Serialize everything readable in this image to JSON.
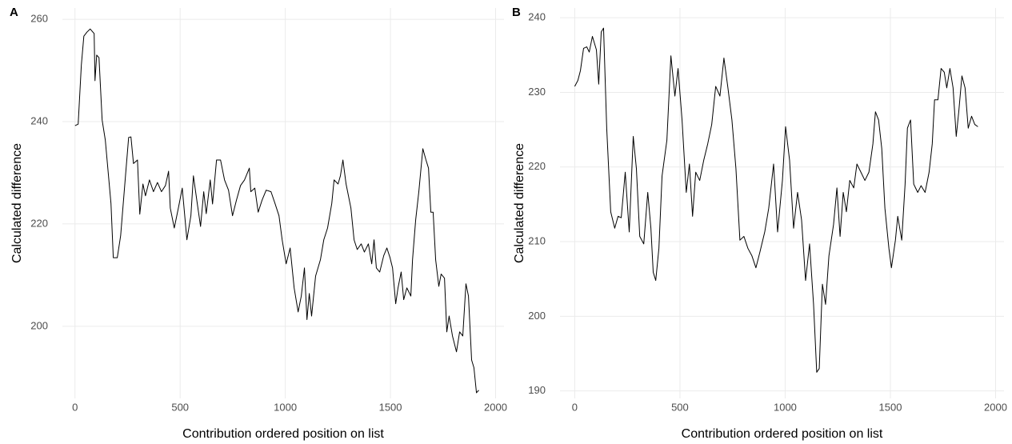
{
  "chart_data": [
    {
      "type": "line",
      "panel_label": "A",
      "x_label": "Contribution ordered position on list",
      "y_label": "Calculated difference",
      "color": "#000000",
      "grid": true,
      "xlim": [
        -60,
        2040
      ],
      "xticks": [
        0,
        500,
        1000,
        1500,
        2000
      ],
      "ylim": [
        185.9,
        262.2
      ],
      "yticks": [
        200,
        220,
        240,
        260
      ],
      "x": [
        0,
        15,
        30,
        42,
        57,
        72,
        91,
        95,
        103,
        114,
        129,
        144,
        171,
        182,
        201,
        217,
        240,
        255,
        266,
        278,
        297,
        308,
        323,
        335,
        354,
        373,
        392,
        411,
        430,
        445,
        453,
        472,
        490,
        510,
        532,
        551,
        563,
        582,
        597,
        612,
        624,
        643,
        654,
        673,
        692,
        711,
        730,
        749,
        768,
        787,
        806,
        829,
        836,
        855,
        871,
        890,
        909,
        932,
        951,
        970,
        985,
        1004,
        1023,
        1042,
        1061,
        1076,
        1091,
        1103,
        1114,
        1125,
        1144,
        1167,
        1183,
        1201,
        1221,
        1232,
        1251,
        1262,
        1274,
        1289,
        1312,
        1327,
        1342,
        1361,
        1376,
        1395,
        1411,
        1422,
        1433,
        1449,
        1468,
        1483,
        1498,
        1510,
        1525,
        1536,
        1551,
        1563,
        1578,
        1597,
        1605,
        1620,
        1635,
        1654,
        1669,
        1681,
        1692,
        1703,
        1715,
        1730,
        1741,
        1757,
        1768,
        1779,
        1795,
        1814,
        1829,
        1844,
        1859,
        1871,
        1886,
        1897,
        1909,
        1920
      ],
      "values": [
        239.2,
        239.5,
        251,
        256.7,
        257.5,
        258.1,
        257.2,
        248,
        253,
        252.5,
        240.3,
        236.4,
        224,
        213.4,
        213.4,
        217.7,
        229.4,
        236.9,
        237,
        231.8,
        232.5,
        221.9,
        227.8,
        225.5,
        228.6,
        226.3,
        228.1,
        226.3,
        227.5,
        230.3,
        223.1,
        219.2,
        222.8,
        227,
        216.9,
        221.6,
        229.4,
        223.8,
        219.5,
        226.3,
        222,
        228.6,
        223.9,
        232.5,
        232.5,
        228.6,
        226.6,
        221.6,
        224.7,
        227.5,
        228.6,
        230.9,
        226.3,
        227,
        222.3,
        224.7,
        226.6,
        226.3,
        224,
        221.6,
        216.9,
        212.2,
        215.3,
        207.5,
        202.8,
        205.9,
        211.4,
        201.3,
        206.4,
        202,
        209.8,
        213,
        216.9,
        219.2,
        224,
        228.6,
        227.8,
        229.4,
        232.5,
        227.8,
        223.1,
        216.9,
        215,
        216.1,
        214.5,
        216.1,
        212.2,
        216.9,
        211.4,
        210.6,
        213.8,
        215.3,
        213.4,
        211.4,
        204.4,
        207.5,
        210.6,
        205.2,
        207.5,
        205.9,
        213,
        220.8,
        226.3,
        234.7,
        232.5,
        230.9,
        222.3,
        222.3,
        213,
        207.8,
        210.2,
        209.4,
        198.9,
        202,
        198.1,
        195,
        198.9,
        198.1,
        208.3,
        205.9,
        193.4,
        191.9,
        187,
        187.5
      ]
    },
    {
      "type": "line",
      "panel_label": "B",
      "x_label": "Contribution ordered position on list",
      "y_label": "Calculated difference",
      "color": "#000000",
      "grid": true,
      "xlim": [
        -70,
        2040
      ],
      "xticks": [
        0,
        500,
        1000,
        1500,
        2000
      ],
      "ylim": [
        189,
        241.3
      ],
      "yticks": [
        190,
        200,
        210,
        220,
        230,
        240
      ],
      "x": [
        0,
        15,
        27,
        42,
        57,
        69,
        84,
        103,
        114,
        126,
        137,
        152,
        171,
        190,
        206,
        221,
        240,
        259,
        278,
        293,
        309,
        328,
        347,
        362,
        373,
        385,
        400,
        415,
        438,
        457,
        476,
        491,
        510,
        530,
        545,
        560,
        575,
        594,
        613,
        632,
        651,
        670,
        690,
        709,
        728,
        747,
        766,
        785,
        804,
        823,
        842,
        861,
        880,
        903,
        922,
        945,
        964,
        987,
        1002,
        1021,
        1040,
        1059,
        1078,
        1097,
        1116,
        1135,
        1150,
        1162,
        1177,
        1192,
        1208,
        1230,
        1246,
        1261,
        1276,
        1291,
        1307,
        1326,
        1341,
        1360,
        1379,
        1398,
        1417,
        1429,
        1444,
        1459,
        1474,
        1493,
        1505,
        1524,
        1535,
        1554,
        1570,
        1581,
        1596,
        1611,
        1630,
        1646,
        1665,
        1684,
        1699,
        1710,
        1726,
        1741,
        1756,
        1768,
        1783,
        1798,
        1813,
        1825,
        1840,
        1855,
        1870,
        1886,
        1901,
        1916
      ],
      "values": [
        230.8,
        231.6,
        232.9,
        235.9,
        236.1,
        235.4,
        237.5,
        235.7,
        231.1,
        238.1,
        238.6,
        225.2,
        214,
        211.8,
        213.4,
        213.2,
        219.3,
        211.3,
        224.1,
        219.8,
        210.7,
        209.7,
        216.6,
        211.8,
        205.9,
        204.8,
        209.1,
        218.8,
        223.6,
        234.9,
        229.5,
        233.2,
        226.3,
        216.6,
        220.4,
        213.4,
        219.3,
        218.2,
        220.9,
        223.1,
        225.7,
        230.8,
        229.5,
        234.6,
        230.6,
        226.3,
        219.8,
        210.2,
        210.7,
        209.1,
        208.1,
        206.5,
        208.6,
        211.3,
        214.5,
        220.4,
        211.3,
        218.2,
        225.4,
        220.9,
        211.8,
        216.6,
        212.9,
        204.8,
        209.7,
        201.6,
        192.5,
        193,
        204.3,
        201.6,
        208.1,
        212.3,
        217.2,
        210.7,
        216.6,
        214,
        218.2,
        217.2,
        220.4,
        219.3,
        218.2,
        219.3,
        223.1,
        227.4,
        226.3,
        222.5,
        214.5,
        209.1,
        206.5,
        210.2,
        213.4,
        210.2,
        217.7,
        225.2,
        226.3,
        217.7,
        216.6,
        217.5,
        216.6,
        219.3,
        223.1,
        229,
        229,
        233.2,
        232.7,
        230.6,
        233.2,
        230.6,
        224.1,
        227.4,
        232.2,
        230.6,
        225.2,
        226.8,
        225.7,
        225.4
      ]
    }
  ]
}
